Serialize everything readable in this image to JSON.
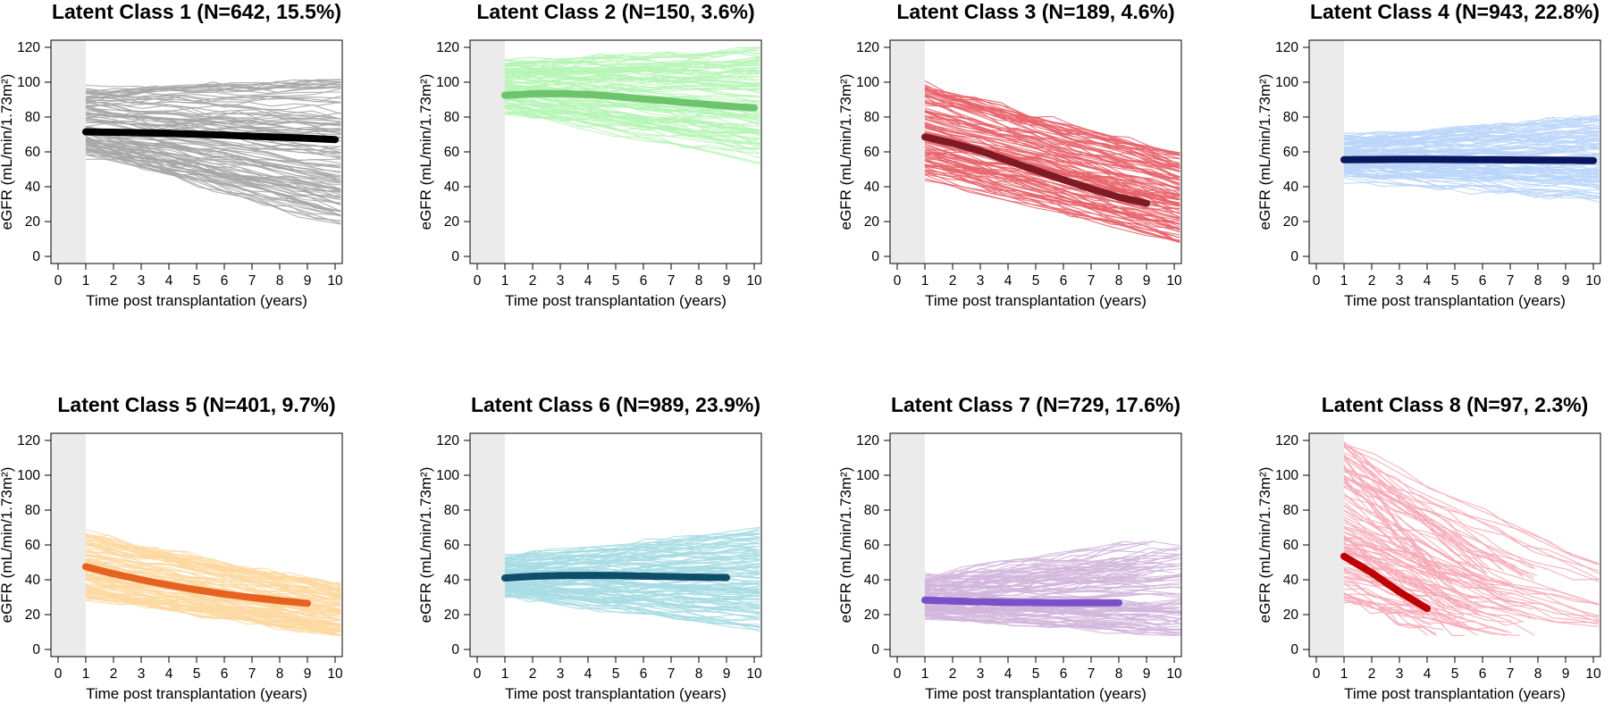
{
  "chart_data": [
    {
      "type": "line",
      "title": "Latent Class 1 (N=642, 15.5%)",
      "xlabel": "Time post transplantation (years)",
      "ylabel": "eGFR (mL/min/1.73m²)",
      "xlim": [
        0,
        10
      ],
      "ylim": [
        0,
        120
      ],
      "x_ticks": [
        0,
        1,
        2,
        3,
        4,
        5,
        6,
        7,
        8,
        9,
        10
      ],
      "y_ticks": [
        0,
        20,
        40,
        60,
        80,
        100,
        120
      ],
      "shaded_region": [
        0,
        1
      ],
      "trend_color": "#000000",
      "individual_color": "#a6a6a6",
      "individual_band": {
        "start_low": 58,
        "start_high": 96,
        "end_low": 18,
        "end_high": 100
      },
      "series": [
        {
          "x": [
            1,
            2,
            3,
            4,
            5,
            6,
            7,
            8,
            9,
            10
          ],
          "values": [
            71.5,
            71.3,
            71.0,
            70.6,
            70.1,
            69.6,
            69.0,
            68.4,
            67.8,
            67.0
          ]
        }
      ]
    },
    {
      "type": "line",
      "title": "Latent Class 2 (N=150, 3.6%)",
      "xlabel": "Time post transplantation (years)",
      "ylabel": "eGFR (mL/min/1.73m²)",
      "xlim": [
        0,
        10
      ],
      "ylim": [
        0,
        120
      ],
      "x_ticks": [
        0,
        1,
        2,
        3,
        4,
        5,
        6,
        7,
        8,
        9,
        10
      ],
      "y_ticks": [
        0,
        20,
        40,
        60,
        80,
        100,
        120
      ],
      "shaded_region": [
        0,
        1
      ],
      "trend_color": "#6cc46c",
      "individual_color": "#b5f5b5",
      "individual_band": {
        "start_low": 82,
        "start_high": 112,
        "end_low": 55,
        "end_high": 118
      },
      "series": [
        {
          "x": [
            1,
            2,
            3,
            4,
            5,
            6,
            7,
            8,
            9,
            10
          ],
          "values": [
            92.5,
            93.4,
            93.5,
            92.9,
            91.8,
            90.4,
            89.0,
            87.6,
            86.3,
            85.3
          ]
        }
      ]
    },
    {
      "type": "line",
      "title": "Latent Class 3 (N=189, 4.6%)",
      "xlabel": "Time post transplantation (years)",
      "ylabel": "eGFR (mL/min/1.73m²)",
      "xlim": [
        0,
        10
      ],
      "ylim": [
        0,
        120
      ],
      "x_ticks": [
        0,
        1,
        2,
        3,
        4,
        5,
        6,
        7,
        8,
        9,
        10
      ],
      "y_ticks": [
        0,
        20,
        40,
        60,
        80,
        100,
        120
      ],
      "shaded_region": [
        0,
        1
      ],
      "trend_color": "#7e1a24",
      "individual_color": "#e8636a",
      "individual_band": {
        "start_low": 45,
        "start_high": 99,
        "end_low": 8,
        "end_high": 58
      },
      "series": [
        {
          "x": [
            1,
            2,
            3,
            4,
            5,
            6,
            7,
            8,
            9
          ],
          "values": [
            68.5,
            65.0,
            60.5,
            55.0,
            49.5,
            44.0,
            38.8,
            34.0,
            30.5
          ]
        }
      ]
    },
    {
      "type": "line",
      "title": "Latent Class 4 (N=943, 22.8%)",
      "xlabel": "Time post transplantation (years)",
      "ylabel": "eGFR (mL/min/1.73m²)",
      "xlim": [
        0,
        10
      ],
      "ylim": [
        0,
        120
      ],
      "x_ticks": [
        0,
        1,
        2,
        3,
        4,
        5,
        6,
        7,
        8,
        9,
        10
      ],
      "y_ticks": [
        0,
        20,
        40,
        60,
        80,
        100,
        120
      ],
      "shaded_region": [
        0,
        1
      ],
      "trend_color": "#0a1560",
      "individual_color": "#b9d5fa",
      "individual_band": {
        "start_low": 44,
        "start_high": 69,
        "end_low": 32,
        "end_high": 80
      },
      "series": [
        {
          "x": [
            1,
            2,
            3,
            4,
            5,
            6,
            7,
            8,
            9,
            10
          ],
          "values": [
            55.5,
            55.6,
            55.7,
            55.7,
            55.6,
            55.5,
            55.4,
            55.3,
            55.2,
            55.0
          ]
        }
      ]
    },
    {
      "type": "line",
      "title": "Latent Class 5 (N=401, 9.7%)",
      "xlabel": "Time post transplantation (years)",
      "ylabel": "eGFR (mL/min/1.73m²)",
      "xlim": [
        0,
        10
      ],
      "ylim": [
        0,
        120
      ],
      "x_ticks": [
        0,
        1,
        2,
        3,
        4,
        5,
        6,
        7,
        8,
        9,
        10
      ],
      "y_ticks": [
        0,
        20,
        40,
        60,
        80,
        100,
        120
      ],
      "shaded_region": [
        0,
        1
      ],
      "trend_color": "#e8621f",
      "individual_color": "#fdd8a0",
      "individual_band": {
        "start_low": 30,
        "start_high": 67,
        "end_low": 8,
        "end_high": 36
      },
      "series": [
        {
          "x": [
            1,
            2,
            3,
            4,
            5,
            6,
            7,
            8,
            9
          ],
          "values": [
            47.5,
            43.5,
            40.0,
            37.0,
            34.2,
            31.8,
            29.8,
            28.0,
            26.5
          ]
        }
      ]
    },
    {
      "type": "line",
      "title": "Latent Class 6 (N=989, 23.9%)",
      "xlabel": "Time post transplantation (years)",
      "ylabel": "eGFR (mL/min/1.73m²)",
      "xlim": [
        0,
        10
      ],
      "ylim": [
        0,
        120
      ],
      "x_ticks": [
        0,
        1,
        2,
        3,
        4,
        5,
        6,
        7,
        8,
        9,
        10
      ],
      "y_ticks": [
        0,
        20,
        40,
        60,
        80,
        100,
        120
      ],
      "shaded_region": [
        0,
        1
      ],
      "trend_color": "#0d4e6a",
      "individual_color": "#a6dbe3",
      "individual_band": {
        "start_low": 30,
        "start_high": 53,
        "end_low": 12,
        "end_high": 68
      },
      "series": [
        {
          "x": [
            1,
            2,
            3,
            4,
            5,
            6,
            7,
            8,
            9
          ],
          "values": [
            41.0,
            42.0,
            42.4,
            42.5,
            42.4,
            42.1,
            41.8,
            41.5,
            41.3
          ]
        }
      ]
    },
    {
      "type": "line",
      "title": "Latent Class 7 (N=729, 17.6%)",
      "xlabel": "Time post transplantation (years)",
      "ylabel": "eGFR (mL/min/1.73m²)",
      "xlim": [
        0,
        10
      ],
      "ylim": [
        0,
        120
      ],
      "x_ticks": [
        0,
        1,
        2,
        3,
        4,
        5,
        6,
        7,
        8,
        9,
        10
      ],
      "y_ticks": [
        0,
        20,
        40,
        60,
        80,
        100,
        120
      ],
      "shaded_region": [
        0,
        1
      ],
      "trend_color": "#7a50c8",
      "individual_color": "#d2b5dc",
      "individual_band": {
        "start_low": 18,
        "start_high": 42,
        "end_low": 8,
        "end_high": 62
      },
      "series": [
        {
          "x": [
            1,
            2,
            3,
            4,
            5,
            6,
            7,
            8
          ],
          "values": [
            28.3,
            27.8,
            27.4,
            27.1,
            26.9,
            26.8,
            26.8,
            26.8
          ]
        }
      ]
    },
    {
      "type": "line",
      "title": "Latent Class 8 (N=97, 2.3%)",
      "xlabel": "Time post transplantation (years)",
      "ylabel": "eGFR (mL/min/1.73m²)",
      "xlim": [
        0,
        10
      ],
      "ylim": [
        0,
        120
      ],
      "x_ticks": [
        0,
        1,
        2,
        3,
        4,
        5,
        6,
        7,
        8,
        9,
        10
      ],
      "y_ticks": [
        0,
        20,
        40,
        60,
        80,
        100,
        120
      ],
      "shaded_region": [
        0,
        1
      ],
      "trend_color": "#c00000",
      "individual_color": "#f7a9b6",
      "individual_band": {
        "start_low": 28,
        "start_high": 120,
        "end_low": 8,
        "end_high": 50
      },
      "series": [
        {
          "x": [
            1,
            2,
            3,
            4
          ],
          "values": [
            53.5,
            44.0,
            33.0,
            23.5
          ]
        }
      ]
    }
  ]
}
